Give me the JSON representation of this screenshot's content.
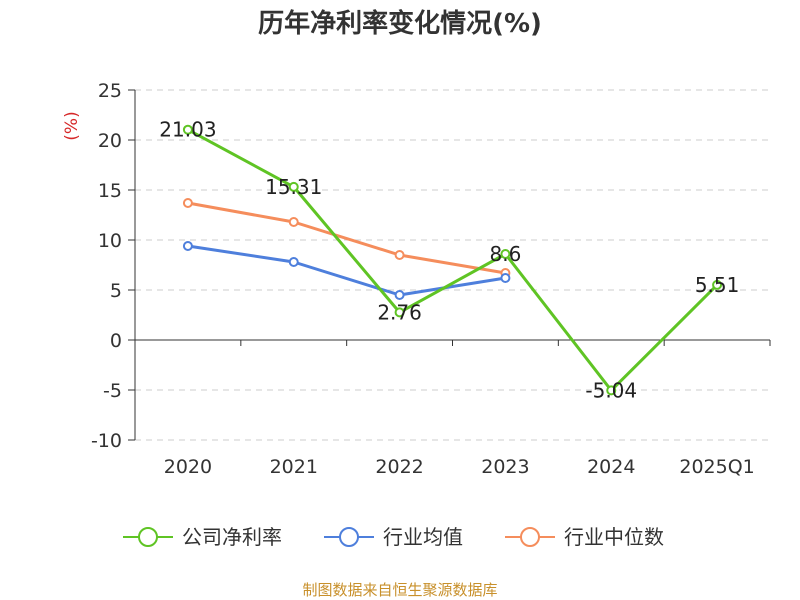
{
  "chart_data": {
    "type": "line",
    "title": "历年净利率变化情况(%)",
    "ylabel": "(%)",
    "xlabel": "",
    "categories": [
      "2020",
      "2021",
      "2022",
      "2023",
      "2024",
      "2025Q1"
    ],
    "ylim": [
      -10,
      25
    ],
    "yticks": [
      -10,
      -5,
      0,
      5,
      10,
      15,
      20,
      25
    ],
    "grid": true,
    "legend_position": "bottom",
    "series": [
      {
        "name": "公司净利率",
        "color": "#5fc424",
        "values": [
          21.03,
          15.31,
          2.76,
          8.6,
          -5.04,
          5.51
        ],
        "labels": [
          "21.03",
          "15.31",
          "2.76",
          "8.6",
          "-5.04",
          "5.51"
        ]
      },
      {
        "name": "行业均值",
        "color": "#4e7fdc",
        "values": [
          9.4,
          7.8,
          4.5,
          6.2,
          null,
          null
        ]
      },
      {
        "name": "行业中位数",
        "color": "#f58d5c",
        "values": [
          13.7,
          11.8,
          8.5,
          6.7,
          null,
          null
        ]
      }
    ]
  },
  "footer": {
    "source": "制图数据来自恒生聚源数据库"
  }
}
